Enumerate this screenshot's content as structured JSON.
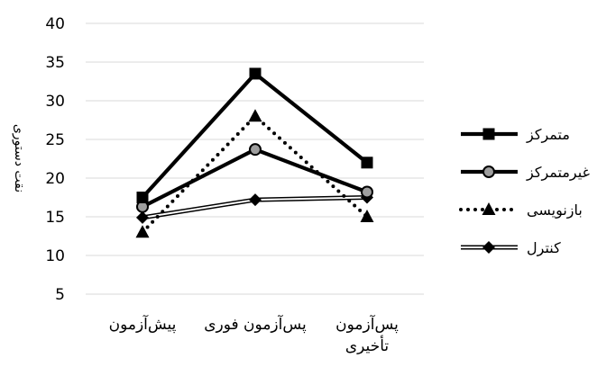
{
  "chart_data": {
    "type": "line",
    "title": "",
    "ylabel": "نقت دستوری",
    "xlabel": "",
    "categories": [
      [
        "پیش‌آزمون"
      ],
      [
        "پس‌آزمون فوری"
      ],
      [
        "پس‌آزمون",
        "تأخیری"
      ]
    ],
    "ylim": [
      5,
      40
    ],
    "yticks": [
      5,
      10,
      15,
      20,
      25,
      30,
      35,
      40
    ],
    "grid": "horizontal",
    "legend_position": "right",
    "series": [
      {
        "name": "متمرکز",
        "values": [
          17.5,
          33.5,
          22
        ],
        "color": "#000000",
        "line_style": "solid-thick",
        "marker": "square"
      },
      {
        "name": "غیرمتمرکز",
        "values": [
          16.3,
          23.7,
          18.2
        ],
        "color": "#000000",
        "line_style": "solid-thick",
        "marker": "circle-gray"
      },
      {
        "name": "بازنویسی",
        "values": [
          13,
          28,
          15
        ],
        "color": "#000000",
        "line_style": "dotted",
        "marker": "triangle"
      },
      {
        "name": "کنترل",
        "values": [
          14.9,
          17.2,
          17.5
        ],
        "color": "#000000",
        "line_style": "double",
        "marker": "diamond"
      }
    ]
  }
}
